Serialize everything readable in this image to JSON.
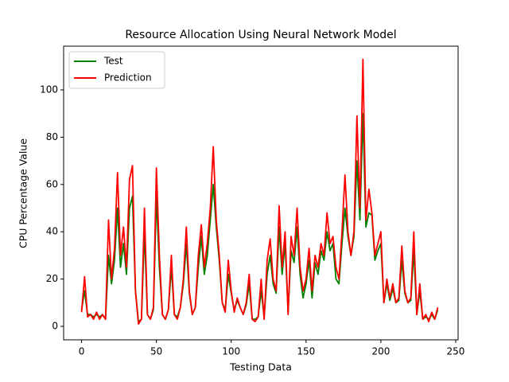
{
  "chart_data": {
    "type": "line",
    "title": "Resource Allocation Using Neural Network Model",
    "x_label": "Testing Data",
    "y_label": "CPU Percentage Value",
    "x": [
      0,
      2,
      4,
      6,
      8,
      10,
      12,
      14,
      16,
      18,
      20,
      22,
      24,
      26,
      28,
      30,
      32,
      34,
      36,
      38,
      40,
      42,
      44,
      46,
      48,
      50,
      52,
      54,
      56,
      58,
      60,
      62,
      64,
      66,
      68,
      70,
      72,
      74,
      76,
      78,
      80,
      82,
      84,
      86,
      88,
      90,
      92,
      94,
      96,
      98,
      100,
      102,
      104,
      106,
      108,
      110,
      112,
      114,
      116,
      118,
      120,
      122,
      124,
      126,
      128,
      130,
      132,
      134,
      136,
      138,
      140,
      142,
      144,
      146,
      148,
      150,
      152,
      154,
      156,
      158,
      160,
      162,
      164,
      166,
      168,
      170,
      172,
      174,
      176,
      178,
      180,
      182,
      184,
      186,
      188,
      190,
      192,
      194,
      196,
      198,
      200,
      202,
      204,
      206,
      208,
      210,
      212,
      214,
      216,
      218,
      220,
      222,
      224,
      226,
      228,
      230,
      232,
      234,
      236,
      238
    ],
    "series": [
      {
        "name": "Test",
        "color": "#008000",
        "values": [
          7,
          15,
          5,
          5,
          4,
          5,
          4,
          5,
          3,
          30,
          18,
          28,
          50,
          25,
          35,
          22,
          50,
          55,
          15,
          2,
          3,
          40,
          5,
          3,
          7,
          55,
          25,
          5,
          3,
          7,
          25,
          5,
          4,
          8,
          18,
          35,
          14,
          5,
          8,
          25,
          38,
          22,
          30,
          45,
          60,
          42,
          28,
          10,
          7,
          22,
          14,
          7,
          11,
          8,
          5,
          9,
          18,
          3,
          3,
          4,
          15,
          4,
          22,
          30,
          18,
          14,
          42,
          22,
          35,
          6,
          32,
          27,
          42,
          22,
          12,
          18,
          28,
          12,
          27,
          22,
          32,
          28,
          40,
          32,
          35,
          20,
          18,
          35,
          50,
          38,
          30,
          38,
          70,
          45,
          90,
          42,
          48,
          47,
          28,
          32,
          35,
          10,
          18,
          11,
          16,
          10,
          11,
          28,
          14,
          10,
          11,
          32,
          5,
          15,
          3,
          4,
          3,
          5,
          3,
          7
        ]
      },
      {
        "name": "Prediction",
        "color": "#ff0000",
        "values": [
          6,
          21,
          4,
          5,
          3,
          6,
          3,
          5,
          3,
          45,
          20,
          33,
          65,
          30,
          42,
          25,
          62,
          68,
          15,
          1,
          3,
          50,
          5,
          3,
          8,
          67,
          30,
          5,
          3,
          7,
          30,
          5,
          3,
          8,
          20,
          42,
          15,
          5,
          8,
          30,
          43,
          25,
          35,
          50,
          76,
          45,
          30,
          10,
          6,
          28,
          15,
          6,
          12,
          8,
          5,
          10,
          22,
          3,
          2,
          4,
          20,
          3,
          28,
          37,
          20,
          15,
          51,
          25,
          40,
          5,
          38,
          30,
          50,
          25,
          15,
          20,
          33,
          15,
          30,
          25,
          35,
          30,
          48,
          35,
          38,
          25,
          20,
          40,
          64,
          40,
          30,
          40,
          89,
          50,
          113,
          45,
          58,
          48,
          30,
          35,
          40,
          10,
          20,
          12,
          18,
          10,
          12,
          34,
          15,
          10,
          12,
          40,
          5,
          18,
          3,
          5,
          2,
          6,
          3,
          8
        ]
      }
    ],
    "xlim": [
      -12,
      251.6
    ],
    "ylim": [
      -5.7,
      118.5
    ],
    "xticks": [
      0,
      50,
      100,
      150,
      200,
      250
    ],
    "yticks": [
      0,
      20,
      40,
      60,
      80,
      100
    ],
    "legend": "upper left"
  }
}
